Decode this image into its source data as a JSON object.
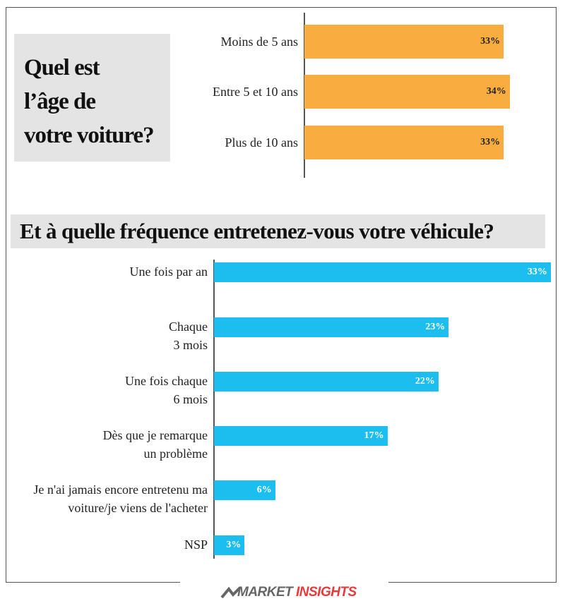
{
  "chart_data": [
    {
      "type": "bar",
      "title": "Quel est\nl’âge de\nvotre voiture?",
      "categories": [
        "Moins de 5 ans",
        "Entre 5 et 10 ans",
        "Plus de 10 ans"
      ],
      "values": [
        33,
        34,
        33
      ],
      "value_labels": [
        "33%",
        "34%",
        "33%"
      ],
      "color": "#f8ad3e"
    },
    {
      "type": "bar",
      "title": "Et à quelle fréquence entretenez-vous votre véhicule?",
      "categories": [
        "Une fois par an",
        "Chaque\n3 mois",
        "Une fois chaque\n6 mois",
        "Dès que je remarque\nun problème",
        "Je n'ai jamais encore entretenu ma\nvoiture/je viens de l'acheter",
        "NSP"
      ],
      "values": [
        33,
        23,
        22,
        17,
        6,
        3
      ],
      "value_labels": [
        "33%",
        "23%",
        "22%",
        "17%",
        "6%",
        "3%"
      ],
      "color": "#1cbdef"
    }
  ],
  "footer": {
    "brand_part1": "MARKET",
    "brand_part2": "INSIGHTS"
  }
}
